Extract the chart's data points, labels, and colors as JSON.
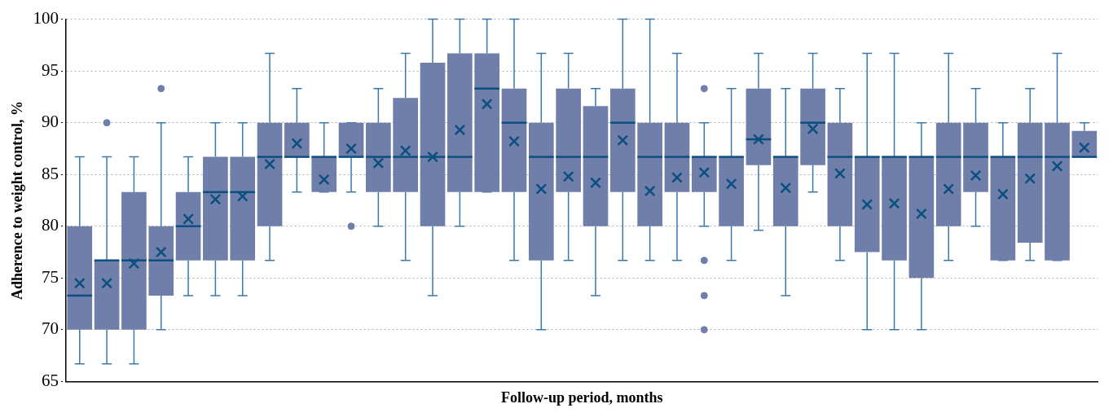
{
  "chart_data": {
    "type": "box",
    "xlabel": "Follow-up period, months",
    "ylabel": "Adherence to weight control, %",
    "color": "#6f7faa",
    "categories": [
      null,
      null,
      null,
      null,
      null,
      null,
      null,
      null,
      null,
      null,
      null,
      null,
      null,
      null,
      null,
      null,
      null,
      null,
      null,
      null,
      null,
      null,
      null,
      null,
      null,
      null,
      null,
      null,
      null,
      null,
      null,
      null,
      null,
      null,
      null,
      null,
      null,
      null
    ],
    "ylim": [
      65,
      100
    ],
    "yticks": [
      65,
      70,
      75,
      80,
      85,
      90,
      95,
      100
    ],
    "grid": "y",
    "tick_labels": "y",
    "marker": "cross",
    "boxes": [
      {
        "low": 66.7,
        "q1": 70,
        "median": 73.3,
        "q3": 80,
        "high": 86.7,
        "mean": 74.5
      },
      {
        "low": 66.7,
        "q1": 70,
        "median": 76.7,
        "q3": 76.7,
        "high": 86.7,
        "mean": 74.5,
        "outliers": [
          90
        ]
      },
      {
        "low": 66.7,
        "q1": 70,
        "median": 76.7,
        "q3": 83.3,
        "high": 86.7,
        "mean": 76.4
      },
      {
        "low": 70,
        "q1": 73.3,
        "median": 76.7,
        "q3": 80,
        "high": 90,
        "mean": 77.5,
        "outliers": [
          93.3
        ]
      },
      {
        "low": 73.3,
        "q1": 76.7,
        "median": 80,
        "q3": 83.3,
        "high": 86.7,
        "mean": 80.7
      },
      {
        "low": 73.3,
        "q1": 76.7,
        "median": 83.3,
        "q3": 86.7,
        "high": 90,
        "mean": 82.6
      },
      {
        "low": 73.3,
        "q1": 76.7,
        "median": 83.3,
        "q3": 86.7,
        "high": 90,
        "mean": 82.9
      },
      {
        "low": 76.7,
        "q1": 80,
        "median": 86.7,
        "q3": 90,
        "high": 96.7,
        "mean": 86
      },
      {
        "low": 83.3,
        "q1": 86.7,
        "median": 86.7,
        "q3": 90,
        "high": 93.3,
        "mean": 88
      },
      {
        "low": 83.3,
        "q1": 83.3,
        "median": 86.7,
        "q3": 86.7,
        "high": 90,
        "mean": 84.5
      },
      {
        "low": 83.3,
        "q1": 86.7,
        "median": 86.7,
        "q3": 90,
        "high": 90,
        "mean": 87.5,
        "outliers": [
          80
        ]
      },
      {
        "low": 80,
        "q1": 83.3,
        "median": 86.7,
        "q3": 90,
        "high": 93.3,
        "mean": 86.1
      },
      {
        "low": 76.7,
        "q1": 83.3,
        "median": 86.7,
        "q3": 92.4,
        "high": 96.7,
        "mean": 87.3
      },
      {
        "low": 73.3,
        "q1": 80,
        "median": 86.7,
        "q3": 95.8,
        "high": 100,
        "mean": 86.7
      },
      {
        "low": 80,
        "q1": 83.3,
        "median": 86.7,
        "q3": 96.7,
        "high": 100,
        "mean": 89.3
      },
      {
        "low": 83.3,
        "q1": 83.3,
        "median": 93.3,
        "q3": 96.7,
        "high": 100,
        "mean": 91.8
      },
      {
        "low": 76.7,
        "q1": 83.3,
        "median": 90,
        "q3": 93.3,
        "high": 100,
        "mean": 88.2
      },
      {
        "low": 70,
        "q1": 76.7,
        "median": 86.7,
        "q3": 90,
        "high": 96.7,
        "mean": 83.6
      },
      {
        "low": 76.7,
        "q1": 83.3,
        "median": 86.7,
        "q3": 93.3,
        "high": 96.7,
        "mean": 84.8
      },
      {
        "low": 73.3,
        "q1": 80,
        "median": 86.7,
        "q3": 91.6,
        "high": 93.3,
        "mean": 84.2
      },
      {
        "low": 76.7,
        "q1": 83.3,
        "median": 90,
        "q3": 93.3,
        "high": 100,
        "mean": 88.3
      },
      {
        "low": 76.7,
        "q1": 80,
        "median": 86.7,
        "q3": 90,
        "high": 100,
        "mean": 83.4
      },
      {
        "low": 76.7,
        "q1": 83.3,
        "median": 86.7,
        "q3": 90,
        "high": 96.7,
        "mean": 84.7
      },
      {
        "low": 80,
        "q1": 83.3,
        "median": 86.7,
        "q3": 86.7,
        "high": 90,
        "mean": 85.2,
        "outliers": [
          93.3,
          76.7,
          73.3,
          70
        ]
      },
      {
        "low": 76.7,
        "q1": 80,
        "median": 86.7,
        "q3": 86.7,
        "high": 93.3,
        "mean": 84.1
      },
      {
        "low": 79.6,
        "q1": 85.9,
        "median": 88.4,
        "q3": 93.3,
        "high": 96.7,
        "mean": 88.4
      },
      {
        "low": 73.3,
        "q1": 80,
        "median": 86.7,
        "q3": 86.7,
        "high": 93.3,
        "mean": 83.7
      },
      {
        "low": 83.3,
        "q1": 85.9,
        "median": 90,
        "q3": 93.3,
        "high": 96.7,
        "mean": 89.4
      },
      {
        "low": 76.7,
        "q1": 80,
        "median": 86.7,
        "q3": 90,
        "high": 93.3,
        "mean": 85.1
      },
      {
        "low": 70,
        "q1": 77.5,
        "median": 86.7,
        "q3": 86.7,
        "high": 96.7,
        "mean": 82.1
      },
      {
        "low": 70,
        "q1": 76.7,
        "median": 86.7,
        "q3": 86.7,
        "high": 96.7,
        "mean": 82.2
      },
      {
        "low": 70,
        "q1": 75,
        "median": 86.7,
        "q3": 86.7,
        "high": 90,
        "mean": 81.2
      },
      {
        "low": 76.7,
        "q1": 80,
        "median": 86.7,
        "q3": 90,
        "high": 96.7,
        "mean": 83.6
      },
      {
        "low": 80,
        "q1": 83.3,
        "median": 86.7,
        "q3": 90,
        "high": 93.3,
        "mean": 84.9
      },
      {
        "low": 76.7,
        "q1": 76.7,
        "median": 86.7,
        "q3": 86.7,
        "high": 90,
        "mean": 83.1
      },
      {
        "low": 76.7,
        "q1": 78.4,
        "median": 86.7,
        "q3": 90,
        "high": 93.3,
        "mean": 84.6
      },
      {
        "low": 76.7,
        "q1": 76.7,
        "median": 86.7,
        "q3": 90,
        "high": 96.7,
        "mean": 85.8
      },
      {
        "low": 86.7,
        "q1": 86.7,
        "median": 86.7,
        "q3": 89.2,
        "high": 90,
        "mean": 87.6
      }
    ]
  }
}
